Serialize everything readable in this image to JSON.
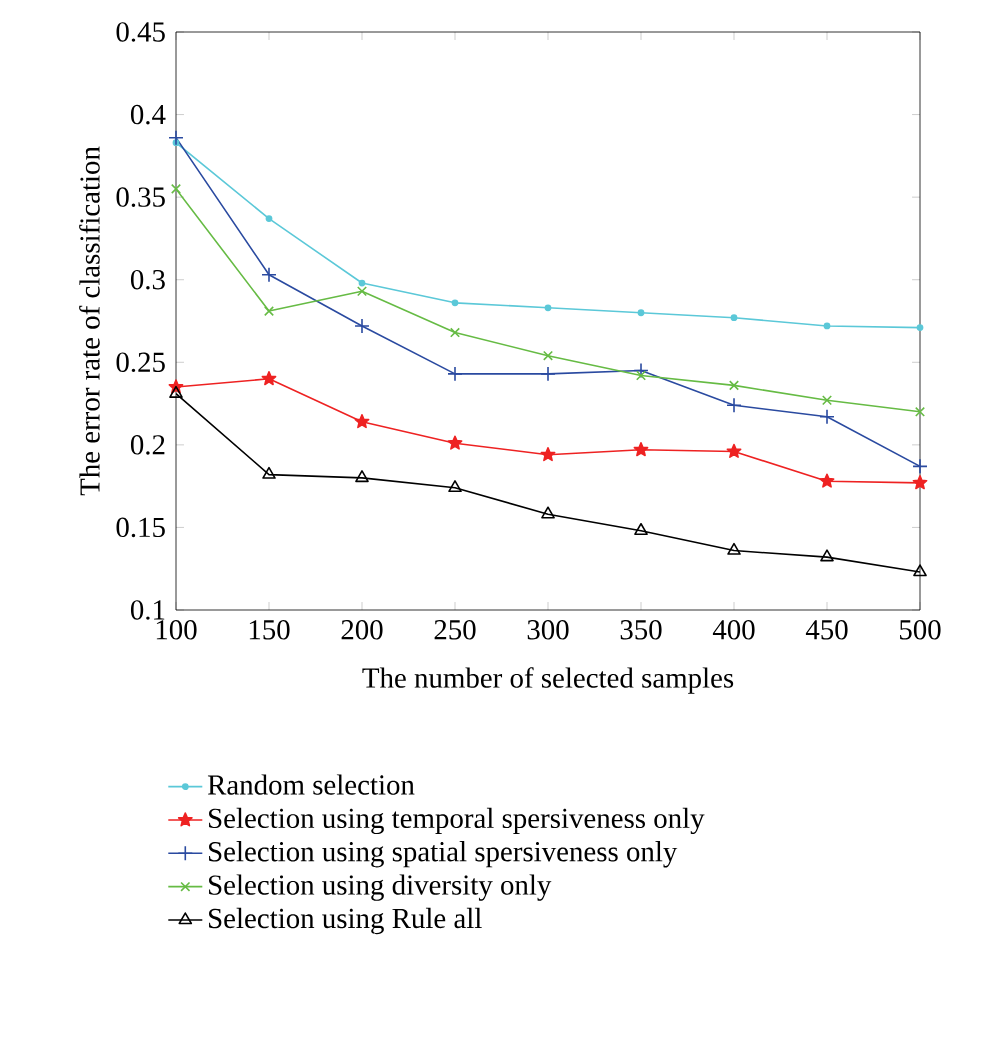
{
  "chart_data": {
    "type": "line",
    "xlabel": "The number of selected samples",
    "ylabel": "The error rate of classification",
    "x": [
      100,
      150,
      200,
      250,
      300,
      350,
      400,
      450,
      500
    ],
    "series": [
      {
        "name": "Random selection",
        "color": "#5bc8d8",
        "marker": "circle",
        "values": [
          0.383,
          0.337,
          0.298,
          0.286,
          0.283,
          0.28,
          0.277,
          0.272,
          0.271
        ]
      },
      {
        "name": "Selection using temporal spersiveness only",
        "color": "#ee2222",
        "marker": "star",
        "values": [
          0.235,
          0.24,
          0.214,
          0.201,
          0.194,
          0.197,
          0.196,
          0.178,
          0.177
        ]
      },
      {
        "name": "Selection using spatial spersiveness only",
        "color": "#2a4aa0",
        "marker": "plus",
        "values": [
          0.386,
          0.303,
          0.272,
          0.243,
          0.243,
          0.245,
          0.224,
          0.217,
          0.187
        ]
      },
      {
        "name": "Selection using diversity only",
        "color": "#66bb44",
        "marker": "cross",
        "values": [
          0.355,
          0.281,
          0.293,
          0.268,
          0.254,
          0.242,
          0.236,
          0.227,
          0.22
        ]
      },
      {
        "name": "Selection using Rule all",
        "color": "#000000",
        "marker": "triangle",
        "values": [
          0.231,
          0.182,
          0.18,
          0.174,
          0.158,
          0.148,
          0.136,
          0.132,
          0.123
        ]
      }
    ],
    "xlim": [
      100,
      500
    ],
    "xticks": [
      100,
      150,
      200,
      250,
      300,
      350,
      400,
      450,
      500
    ],
    "ylim": [
      0.1,
      0.45
    ],
    "yticks": [
      0.1,
      0.15,
      0.2,
      0.25,
      0.3,
      0.35,
      0.4,
      0.45
    ],
    "grid": false,
    "legend": "bottom",
    "line_style": "solid"
  }
}
